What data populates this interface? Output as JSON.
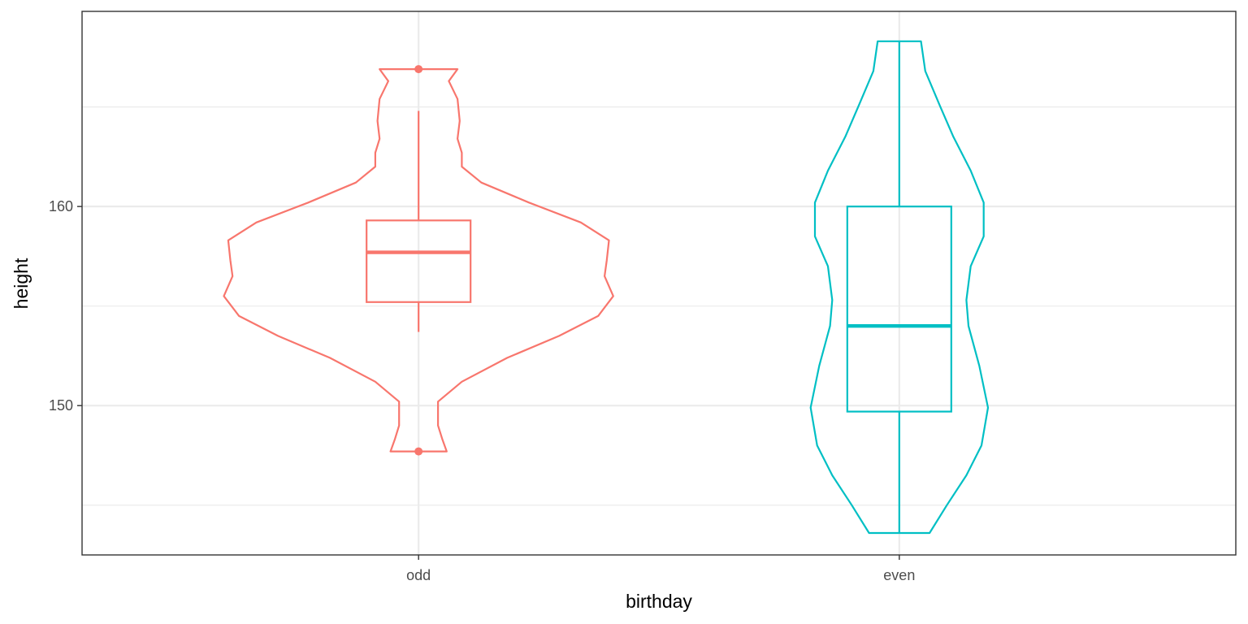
{
  "chart_data": {
    "type": "violin",
    "title": "",
    "xlabel": "birthday",
    "ylabel": "height",
    "ylim": [
      142.5,
      169.8
    ],
    "yticks": [
      150,
      160
    ],
    "ygrid_minor": [
      145,
      155,
      165
    ],
    "grid": true,
    "categories": [
      "odd",
      "even"
    ],
    "colors": {
      "odd": "#F8766D",
      "even": "#00BFC4"
    },
    "series": [
      {
        "category": "odd",
        "violin": {
          "y": [
            147.7,
            148.3,
            149.0,
            150.2,
            151.2,
            152.4,
            153.5,
            154.5,
            155.5,
            156.5,
            157.3,
            158.3,
            159.2,
            160.2,
            161.2,
            162.0,
            162.7,
            163.4,
            164.3,
            165.4,
            166.3,
            166.9
          ],
          "density": [
            0.13,
            0.11,
            0.09,
            0.09,
            0.2,
            0.41,
            0.65,
            0.83,
            0.9,
            0.86,
            0.87,
            0.88,
            0.75,
            0.51,
            0.29,
            0.2,
            0.2,
            0.18,
            0.19,
            0.18,
            0.14,
            0.18
          ]
        },
        "box": {
          "whisker_low": 153.7,
          "q1": 155.2,
          "median": 157.7,
          "q3": 159.3,
          "whisker_high": 164.8
        },
        "outliers": [
          166.9,
          147.7
        ]
      },
      {
        "category": "even",
        "violin": {
          "y": [
            143.6,
            145.0,
            146.5,
            148.0,
            149.9,
            152.0,
            154.0,
            155.3,
            157.0,
            158.5,
            160.2,
            161.8,
            163.5,
            165.0,
            166.8,
            168.3
          ],
          "density": [
            0.14,
            0.22,
            0.31,
            0.38,
            0.41,
            0.37,
            0.32,
            0.31,
            0.33,
            0.39,
            0.39,
            0.33,
            0.25,
            0.19,
            0.12,
            0.1
          ]
        },
        "box": {
          "whisker_low": 143.6,
          "q1": 149.7,
          "median": 154.0,
          "q3": 160.0,
          "whisker_high": 168.3
        },
        "outliers": []
      }
    ]
  }
}
